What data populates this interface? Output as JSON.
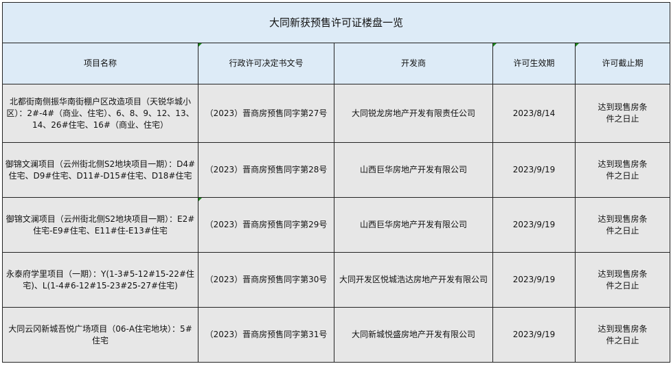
{
  "title": "大同新获预售许可证楼盘一览",
  "headers": [
    "项目名称",
    "行政许可决定书文号",
    "开发商",
    "许可生效期",
    "许可截止期"
  ],
  "rows": [
    [
      "北都街南侧振华南街棚户区改造项目（天锐华城小区）：2#-4#（商业、住宅）、6、8、9、12、13、14、26#住宅、16#（商业、住宅）",
      "（2023）晋商房预售同字第27号",
      "大同锐龙房地产开发有限责任公司",
      "2023/8/14",
      "达到现售房条件之日止"
    ],
    [
      "御锦文澜项目（云州街北侧S2地块项目一期）：D4#住宅、D9#住宅、D11#-D15#住宅、D18#住宅",
      "（2023）晋商房预售同字第28号",
      "山西巨华房地产开发有限公司",
      "2023/9/19",
      "达到现售房条件之日止"
    ],
    [
      "御锦文澜项目（云州街北侧S2地块项目一期）：E2#住宅-E9#住宅、E11#住-E13#住宅",
      "（2023）晋商房预售同字第29号",
      "山西巨华房地产开发有限公司",
      "2023/9/19",
      "达到现售房条件之日止"
    ],
    [
      "永泰府学里项目（一期）：Y(1-3#5-12#15-22#住宅)、L(1-4#6-12#15-23#25-27#住宅)",
      "（2023）晋商房预售同字第30号",
      "大同开发区悦城浩达房地产开发有限公司",
      "2023/9/19",
      "达到现售房条件之日止"
    ],
    [
      "大同云冈新城吾悦广场项目（06-A住宅地块）：5#住宅",
      "（2023）晋商房预售同字第31号",
      "大同新城悦盛房地产开发有限公司",
      "2023/9/19",
      "达到现售房条件之日止"
    ]
  ],
  "colors": {
    "header_bg": "#ddebf7",
    "row_bg": "#e7e7e7"
  }
}
